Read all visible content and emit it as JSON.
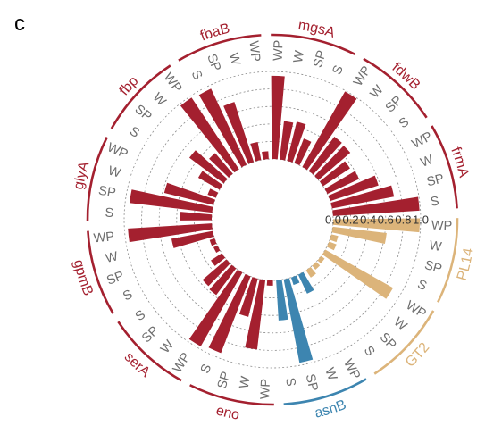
{
  "panel_letter": "c",
  "chart_data": {
    "type": "bar",
    "coordinate_system": "polar",
    "radial_axis": {
      "range": [
        0,
        1
      ],
      "ticks": [
        "0.0",
        "0.2",
        "0.4",
        "0.6",
        "0.8",
        "1.0"
      ],
      "grid": true
    },
    "colors": {
      "red_group": "#a4202f",
      "blue_group": "#3d85b0",
      "tan_group": "#dcb47a"
    },
    "groups": [
      {
        "name": "mgsA",
        "color": "#a4202f",
        "bars": [
          {
            "label": "WP",
            "value": 0.95
          },
          {
            "label": "W",
            "value": 0.44
          },
          {
            "label": "SP",
            "value": 0.46
          },
          {
            "label": "S",
            "value": 0.3
          }
        ]
      },
      {
        "name": "fdwB",
        "color": "#a4202f",
        "bars": [
          {
            "label": "WP",
            "value": 0.99
          },
          {
            "label": "W",
            "value": 0.49
          },
          {
            "label": "SP",
            "value": 0.48
          },
          {
            "label": "S",
            "value": 0.37
          }
        ]
      },
      {
        "name": "frmA",
        "color": "#a4202f",
        "bars": [
          {
            "label": "WP",
            "value": 0.4
          },
          {
            "label": "W",
            "value": 0.58
          },
          {
            "label": "SP",
            "value": 0.72
          },
          {
            "label": "S",
            "value": 0.99
          }
        ]
      },
      {
        "name": "PL14",
        "color": "#dcb47a",
        "bars": [
          {
            "label": "WP",
            "value": 0.99
          },
          {
            "label": "W",
            "value": 0.62
          },
          {
            "label": "SP",
            "value": 0.08
          },
          {
            "label": "S",
            "value": 0.09
          }
        ]
      },
      {
        "name": "GT2",
        "color": "#dcb47a",
        "bars": [
          {
            "label": "WP",
            "value": 0.89
          },
          {
            "label": "W",
            "value": 0.05
          },
          {
            "label": "SP",
            "value": 0.06
          },
          {
            "label": "S",
            "value": 0.1
          }
        ]
      },
      {
        "name": "asnB",
        "color": "#3d85b0",
        "bars": [
          {
            "label": "WP",
            "value": 0.24
          },
          {
            "label": "W",
            "value": 0.09
          },
          {
            "label": "SP",
            "value": 0.97
          },
          {
            "label": "S",
            "value": 0.46
          }
        ]
      },
      {
        "name": "eno",
        "color": "#a4202f",
        "bars": [
          {
            "label": "WP",
            "value": 0.06
          },
          {
            "label": "W",
            "value": 0.8
          },
          {
            "label": "SP",
            "value": 0.45
          },
          {
            "label": "S",
            "value": 0.94
          }
        ]
      },
      {
        "name": "serA",
        "color": "#a4202f",
        "bars": [
          {
            "label": "WP",
            "value": 0.97
          },
          {
            "label": "W",
            "value": 0.38
          },
          {
            "label": "SP",
            "value": 0.36
          },
          {
            "label": "S",
            "value": 0.15
          }
        ]
      },
      {
        "name": "gpmB",
        "color": "#a4202f",
        "bars": [
          {
            "label": "S",
            "value": 0.05
          },
          {
            "label": "SP",
            "value": 0.06
          },
          {
            "label": "W",
            "value": 0.48
          },
          {
            "label": "WP",
            "value": 0.96
          }
        ]
      },
      {
        "name": "glyA",
        "color": "#a4202f",
        "bars": [
          {
            "label": "S",
            "value": 0.36
          },
          {
            "label": "SP",
            "value": 0.95
          },
          {
            "label": "W",
            "value": 0.58
          },
          {
            "label": "WP",
            "value": 0.1
          }
        ]
      },
      {
        "name": "fbp",
        "color": "#a4202f",
        "bars": [
          {
            "label": "S",
            "value": 0.28
          },
          {
            "label": "SP",
            "value": 0.49
          },
          {
            "label": "W",
            "value": 0.31
          },
          {
            "label": "WP",
            "value": 0.98
          }
        ]
      },
      {
        "name": "fbaB",
        "color": "#a4202f",
        "bars": [
          {
            "label": "S",
            "value": 0.96
          },
          {
            "label": "SP",
            "value": 0.72
          },
          {
            "label": "W",
            "value": 0.21
          },
          {
            "label": "WP",
            "value": 0.09
          }
        ]
      }
    ]
  }
}
